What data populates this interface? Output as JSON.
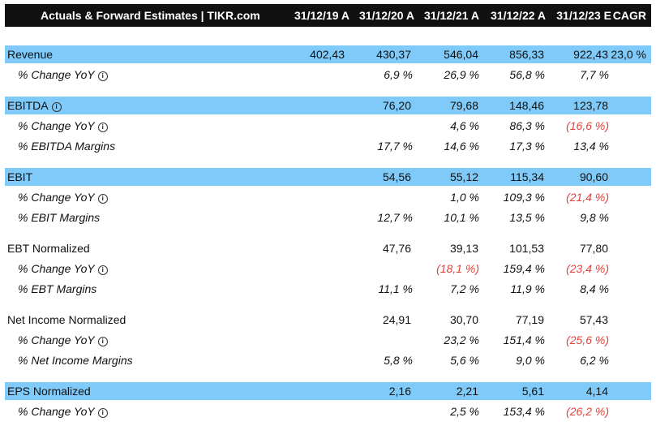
{
  "header": {
    "title": "Actuals & Forward Estimates | TIKR.com",
    "columns": [
      "31/12/19 A",
      "31/12/20 A",
      "31/12/21 A",
      "31/12/22 A",
      "31/12/23 E",
      "CAGR"
    ]
  },
  "rows": [
    {
      "label": "Revenue",
      "values": [
        "402,43",
        "430,37",
        "546,04",
        "856,33",
        "922,43",
        "23,0 %"
      ]
    },
    {
      "label": "% Change YoY",
      "values": [
        "",
        "6,9 %",
        "26,9 %",
        "56,8 %",
        "7,7 %",
        ""
      ]
    },
    {
      "label": "EBITDA",
      "values": [
        "",
        "76,20",
        "79,68",
        "148,46",
        "123,78",
        ""
      ]
    },
    {
      "label": "% Change YoY",
      "values": [
        "",
        "",
        "4,6 %",
        "86,3 %",
        "(16,6 %)",
        ""
      ]
    },
    {
      "label": "% EBITDA Margins",
      "values": [
        "",
        "17,7 %",
        "14,6 %",
        "17,3 %",
        "13,4 %",
        ""
      ]
    },
    {
      "label": "EBIT",
      "values": [
        "",
        "54,56",
        "55,12",
        "115,34",
        "90,60",
        ""
      ]
    },
    {
      "label": "% Change YoY",
      "values": [
        "",
        "",
        "1,0 %",
        "109,3 %",
        "(21,4 %)",
        ""
      ]
    },
    {
      "label": "% EBIT Margins",
      "values": [
        "",
        "12,7 %",
        "10,1 %",
        "13,5 %",
        "9,8 %",
        ""
      ]
    },
    {
      "label": "EBT Normalized",
      "values": [
        "",
        "47,76",
        "39,13",
        "101,53",
        "77,80",
        ""
      ]
    },
    {
      "label": "% Change YoY",
      "values": [
        "",
        "",
        "(18,1 %)",
        "159,4 %",
        "(23,4 %)",
        ""
      ]
    },
    {
      "label": "% EBT Margins",
      "values": [
        "",
        "11,1 %",
        "7,2 %",
        "11,9 %",
        "8,4 %",
        ""
      ]
    },
    {
      "label": "Net Income Normalized",
      "values": [
        "",
        "24,91",
        "30,70",
        "77,19",
        "57,43",
        ""
      ]
    },
    {
      "label": "% Change YoY",
      "values": [
        "",
        "",
        "23,2 %",
        "151,4 %",
        "(25,6 %)",
        ""
      ]
    },
    {
      "label": "% Net Income Margins",
      "values": [
        "",
        "5,8 %",
        "5,6 %",
        "9,0 %",
        "6,2 %",
        ""
      ]
    },
    {
      "label": "EPS Normalized",
      "values": [
        "",
        "2,16",
        "2,21",
        "5,61",
        "4,14",
        ""
      ]
    },
    {
      "label": "% Change YoY",
      "values": [
        "",
        "",
        "2,5 %",
        "153,4 %",
        "(26,2 %)",
        ""
      ]
    }
  ],
  "colors": {
    "header_bg": "#111111",
    "highlight_bg": "#7fcaf8",
    "negative_text": "#e0413a"
  }
}
